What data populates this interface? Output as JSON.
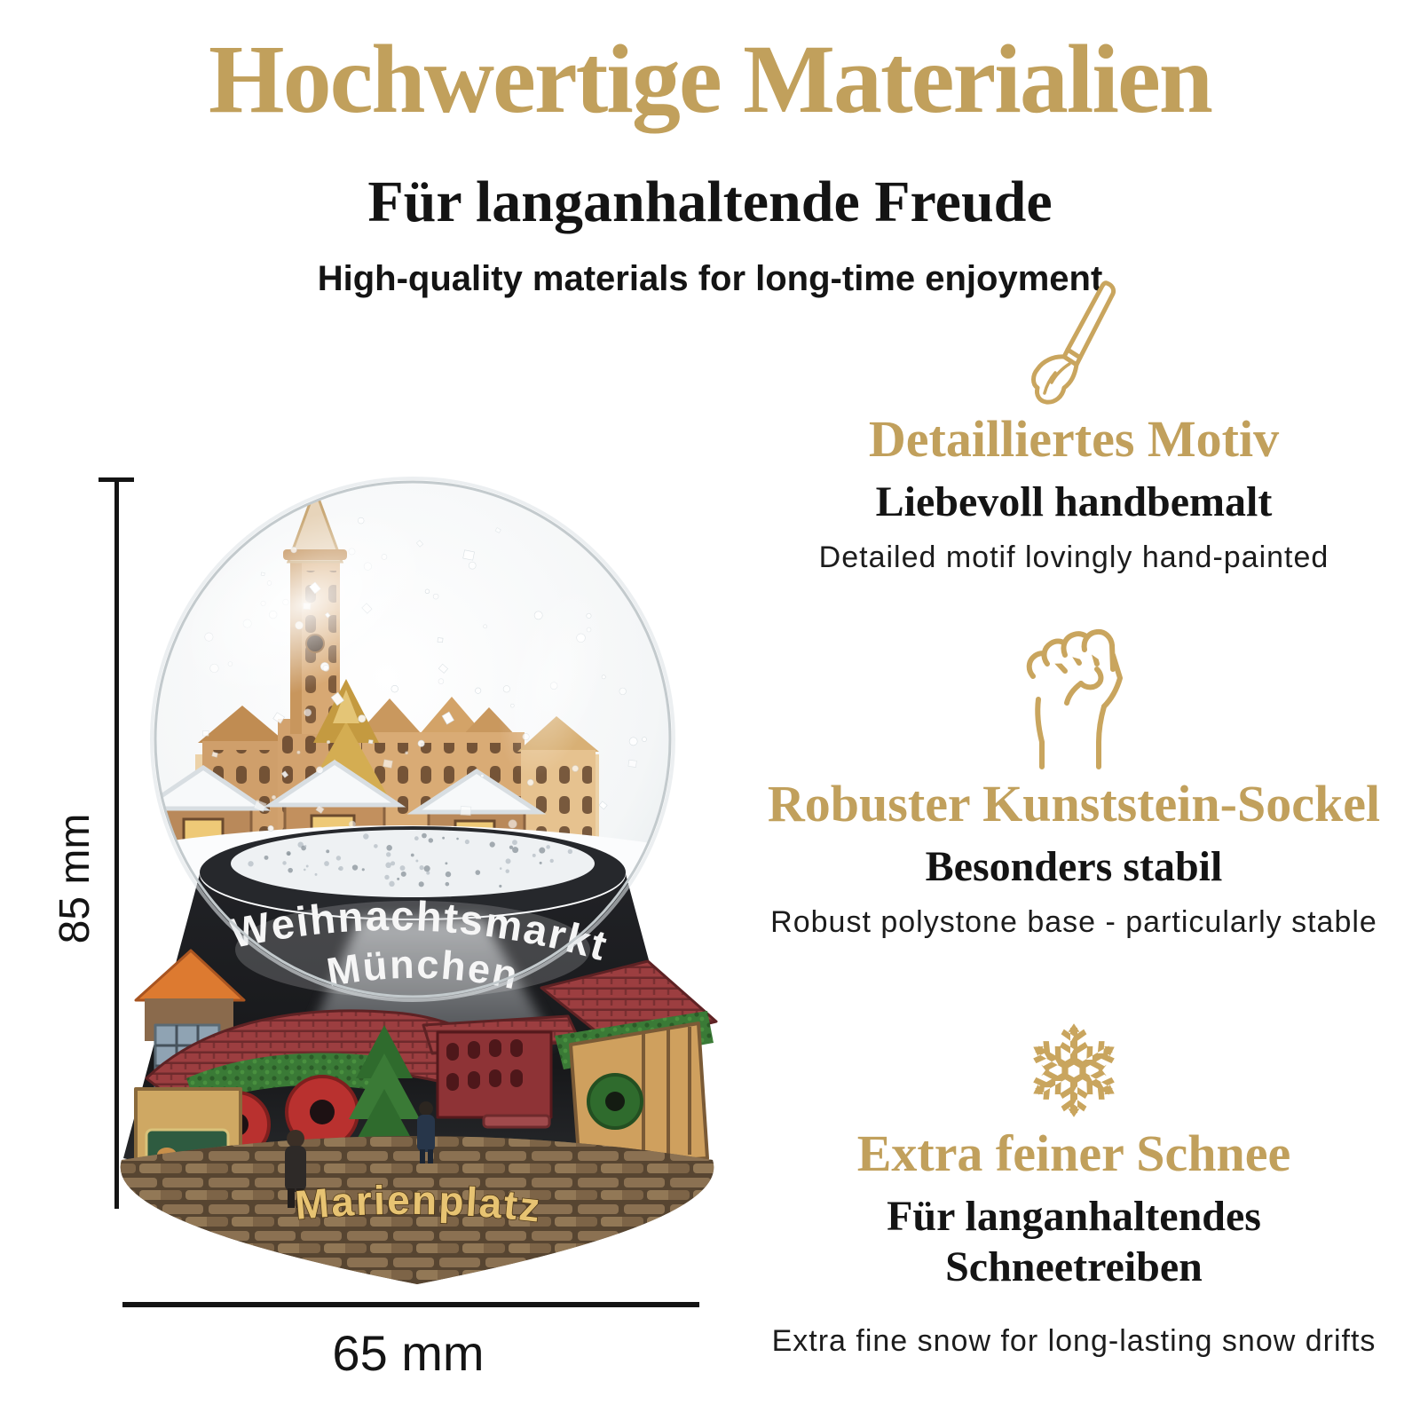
{
  "header": {
    "title": "Hochwertige Materialien",
    "subtitle": "Für langanhaltende Freude",
    "tagline": "High-quality materials for long-time enjoyment"
  },
  "features": [
    {
      "icon": "paintbrush-icon",
      "heading": "Detailliertes Motiv",
      "subheading": "Liebevoll handbemalt",
      "description": "Detailed motif lovingly hand-painted"
    },
    {
      "icon": "fist-icon",
      "heading": "Robuster Kunststein-Sockel",
      "subheading": "Besonders stabil",
      "description": "Robust polystone base - particularly stable"
    },
    {
      "icon": "snowflake-icon",
      "heading": "Extra feiner Schnee",
      "subheading": "Für langanhaltendes Schneetreiben",
      "description": "Extra fine snow for long-lasting snow drifts"
    }
  ],
  "product": {
    "globe_text_line1": "Weihnachtsmarkt",
    "globe_text_line2": "München",
    "globe_base_label": "Marienplatz",
    "height_label": "85 mm",
    "width_label": "65 mm"
  },
  "colors": {
    "accent_gold": "#c1a05c",
    "icon_gold": "#c9a55e",
    "text_black": "#141414",
    "base_black": "#1d1e21",
    "roof_red": "#9c3e40",
    "garland_green": "#3a7a36",
    "stall_tan": "#cfa863",
    "cobble_brown": "#6f5a42",
    "snow_white": "#ffffff"
  }
}
